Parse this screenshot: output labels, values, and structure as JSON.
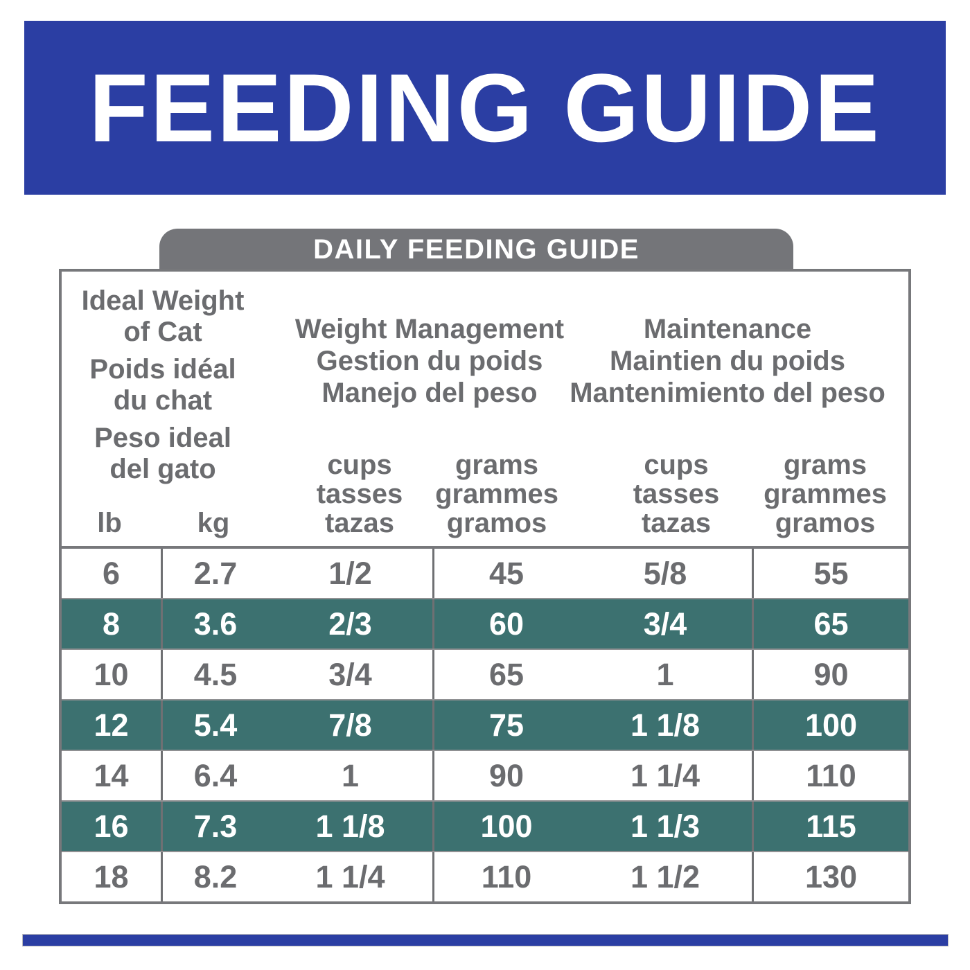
{
  "banner": {
    "title": "FEEDING GUIDE"
  },
  "tab": {
    "label": "DAILY FEEDING GUIDE"
  },
  "table": {
    "groups": {
      "ideal_weight": {
        "en1": "Ideal Weight",
        "en2": "of Cat",
        "fr1": "Poids idéal",
        "fr2": "du chat",
        "es1": "Peso ideal",
        "es2": "del gato"
      },
      "weight_management": {
        "en": "Weight Management",
        "fr": "Gestion du poids",
        "es": "Manejo del peso"
      },
      "maintenance": {
        "en": "Maintenance",
        "fr": "Maintien du poids",
        "es": "Mantenimiento del peso"
      }
    },
    "units": {
      "lb": "lb",
      "kg": "kg",
      "cups": [
        "cups",
        "tasses",
        "tazas"
      ],
      "grams": [
        "grams",
        "grammes",
        "gramos"
      ]
    },
    "rows": [
      {
        "lb": "6",
        "kg": "2.7",
        "wm_cups": "1/2",
        "wm_grams": "45",
        "m_cups": "5/8",
        "m_grams": "55",
        "highlighted": false
      },
      {
        "lb": "8",
        "kg": "3.6",
        "wm_cups": "2/3",
        "wm_grams": "60",
        "m_cups": "3/4",
        "m_grams": "65",
        "highlighted": true
      },
      {
        "lb": "10",
        "kg": "4.5",
        "wm_cups": "3/4",
        "wm_grams": "65",
        "m_cups": "1",
        "m_grams": "90",
        "highlighted": false
      },
      {
        "lb": "12",
        "kg": "5.4",
        "wm_cups": "7/8",
        "wm_grams": "75",
        "m_cups": "1 1/8",
        "m_grams": "100",
        "highlighted": true
      },
      {
        "lb": "14",
        "kg": "6.4",
        "wm_cups": "1",
        "wm_grams": "90",
        "m_cups": "1 1/4",
        "m_grams": "110",
        "highlighted": false
      },
      {
        "lb": "16",
        "kg": "7.3",
        "wm_cups": "1 1/8",
        "wm_grams": "100",
        "m_cups": "1 1/3",
        "m_grams": "115",
        "highlighted": true
      },
      {
        "lb": "18",
        "kg": "8.2",
        "wm_cups": "1 1/4",
        "wm_grams": "110",
        "m_cups": "1 1/2",
        "m_grams": "130",
        "highlighted": false
      }
    ]
  },
  "colors": {
    "banner_blue": "#2B3EA3",
    "tab_gray": "#747579",
    "row_teal": "#3C7170",
    "text_gray": "#6B6C6F",
    "border_gray": "#77787B"
  }
}
